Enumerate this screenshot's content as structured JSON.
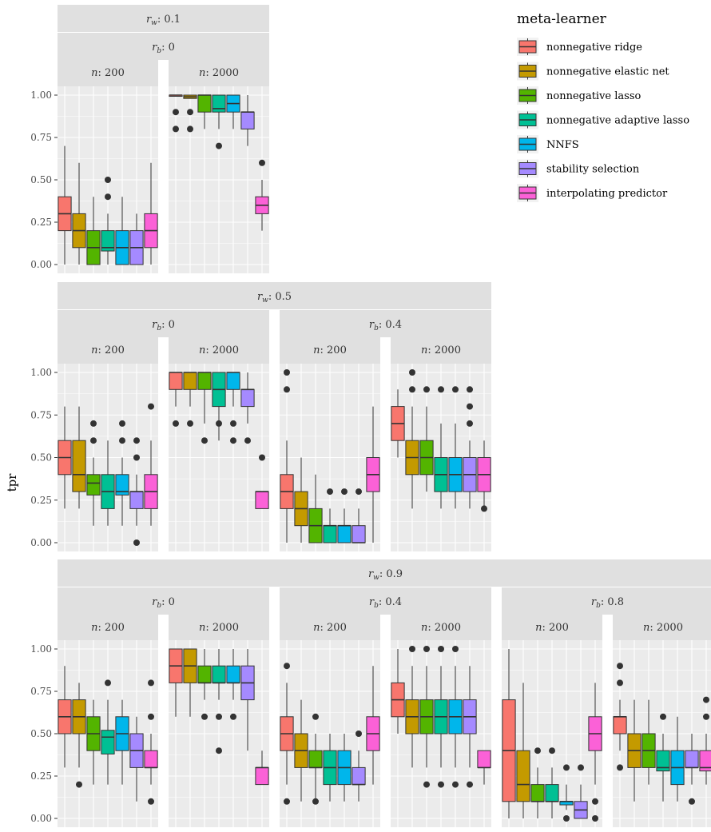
{
  "chart_data": {
    "type": "boxplot",
    "ylabel": "tpr",
    "xlabel": "",
    "ylim": [
      0,
      1
    ],
    "yticks": [
      "0.00",
      "0.25",
      "0.50",
      "0.75",
      "1.00"
    ],
    "grid": true,
    "legend": {
      "title": "meta-learner",
      "position": "top-right",
      "items": [
        {
          "label": "nonnegative ridge",
          "color": "#F8766D"
        },
        {
          "label": "nonnegative elastic net",
          "color": "#C49A00"
        },
        {
          "label": "nonnegative lasso",
          "color": "#53B400"
        },
        {
          "label": "nonnegative adaptive lasso",
          "color": "#00C094"
        },
        {
          "label": "NNFS",
          "color": "#00B6EB"
        },
        {
          "label": "stability selection",
          "color": "#A58AFF"
        },
        {
          "label": "interpolating predictor",
          "color": "#FB61D7"
        }
      ]
    },
    "panels": [
      {
        "rw": "0.1",
        "rb": "0",
        "n": "200",
        "boxes": [
          {
            "q1": 0.2,
            "median": 0.3,
            "q3": 0.4,
            "lo": 0.0,
            "hi": 0.7,
            "out": []
          },
          {
            "q1": 0.1,
            "median": 0.2,
            "q3": 0.3,
            "lo": 0.0,
            "hi": 0.6,
            "out": []
          },
          {
            "q1": 0.0,
            "median": 0.1,
            "q3": 0.2,
            "lo": 0.0,
            "hi": 0.4,
            "out": []
          },
          {
            "q1": 0.08,
            "median": 0.1,
            "q3": 0.2,
            "lo": 0.0,
            "hi": 0.3,
            "out": [
              0.4,
              0.5
            ]
          },
          {
            "q1": 0.0,
            "median": 0.1,
            "q3": 0.2,
            "lo": 0.0,
            "hi": 0.4,
            "out": []
          },
          {
            "q1": 0.0,
            "median": 0.1,
            "q3": 0.2,
            "lo": 0.0,
            "hi": 0.3,
            "out": []
          },
          {
            "q1": 0.1,
            "median": 0.2,
            "q3": 0.3,
            "lo": 0.0,
            "hi": 0.6,
            "out": []
          }
        ]
      },
      {
        "rw": "0.1",
        "rb": "0",
        "n": "2000",
        "boxes": [
          {
            "q1": 1.0,
            "median": 1.0,
            "q3": 1.0,
            "lo": 1.0,
            "hi": 1.0,
            "out": [
              0.8,
              0.9
            ]
          },
          {
            "q1": 0.98,
            "median": 0.99,
            "q3": 1.0,
            "lo": 0.98,
            "hi": 1.0,
            "out": [
              0.8,
              0.9
            ]
          },
          {
            "q1": 0.9,
            "median": 1.0,
            "q3": 1.0,
            "lo": 0.8,
            "hi": 1.0,
            "out": []
          },
          {
            "q1": 0.9,
            "median": 0.92,
            "q3": 1.0,
            "lo": 0.8,
            "hi": 1.0,
            "out": [
              0.7
            ]
          },
          {
            "q1": 0.9,
            "median": 0.95,
            "q3": 1.0,
            "lo": 0.8,
            "hi": 1.0,
            "out": []
          },
          {
            "q1": 0.8,
            "median": 0.9,
            "q3": 0.9,
            "lo": 0.7,
            "hi": 1.0,
            "out": []
          },
          {
            "q1": 0.3,
            "median": 0.35,
            "q3": 0.4,
            "lo": 0.2,
            "hi": 0.5,
            "out": [
              0.6
            ]
          }
        ]
      },
      {
        "rw": "0.5",
        "rb": "0",
        "n": "200",
        "boxes": [
          {
            "q1": 0.4,
            "median": 0.5,
            "q3": 0.6,
            "lo": 0.2,
            "hi": 0.8,
            "out": []
          },
          {
            "q1": 0.3,
            "median": 0.4,
            "q3": 0.6,
            "lo": 0.2,
            "hi": 0.8,
            "out": []
          },
          {
            "q1": 0.28,
            "median": 0.35,
            "q3": 0.4,
            "lo": 0.1,
            "hi": 0.5,
            "out": [
              0.6,
              0.7
            ]
          },
          {
            "q1": 0.2,
            "median": 0.3,
            "q3": 0.4,
            "lo": 0.1,
            "hi": 0.6,
            "out": []
          },
          {
            "q1": 0.28,
            "median": 0.3,
            "q3": 0.4,
            "lo": 0.1,
            "hi": 0.5,
            "out": [
              0.6,
              0.7
            ]
          },
          {
            "q1": 0.2,
            "median": 0.3,
            "q3": 0.3,
            "lo": 0.1,
            "hi": 0.4,
            "out": [
              0.0,
              0.5,
              0.6
            ]
          },
          {
            "q1": 0.2,
            "median": 0.3,
            "q3": 0.4,
            "lo": 0.1,
            "hi": 0.6,
            "out": [
              0.8
            ]
          }
        ]
      },
      {
        "rw": "0.5",
        "rb": "0",
        "n": "2000",
        "boxes": [
          {
            "q1": 0.9,
            "median": 1.0,
            "q3": 1.0,
            "lo": 0.8,
            "hi": 1.0,
            "out": [
              0.7
            ]
          },
          {
            "q1": 0.9,
            "median": 1.0,
            "q3": 1.0,
            "lo": 0.8,
            "hi": 1.0,
            "out": [
              0.7
            ]
          },
          {
            "q1": 0.9,
            "median": 1.0,
            "q3": 1.0,
            "lo": 0.7,
            "hi": 1.0,
            "out": [
              0.6
            ]
          },
          {
            "q1": 0.8,
            "median": 0.9,
            "q3": 1.0,
            "lo": 0.6,
            "hi": 1.0,
            "out": [
              0.7
            ]
          },
          {
            "q1": 0.9,
            "median": 1.0,
            "q3": 1.0,
            "lo": 0.8,
            "hi": 1.0,
            "out": [
              0.6,
              0.7
            ]
          },
          {
            "q1": 0.8,
            "median": 0.9,
            "q3": 0.9,
            "lo": 0.7,
            "hi": 1.0,
            "out": [
              0.6
            ]
          },
          {
            "q1": 0.2,
            "median": 0.3,
            "q3": 0.3,
            "lo": 0.2,
            "hi": 0.3,
            "out": [
              0.5
            ]
          }
        ]
      },
      {
        "rw": "0.5",
        "rb": "0.4",
        "n": "200",
        "boxes": [
          {
            "q1": 0.2,
            "median": 0.3,
            "q3": 0.4,
            "lo": 0.0,
            "hi": 0.6,
            "out": [
              0.9,
              1.0
            ]
          },
          {
            "q1": 0.1,
            "median": 0.2,
            "q3": 0.3,
            "lo": 0.0,
            "hi": 0.5,
            "out": []
          },
          {
            "q1": 0.0,
            "median": 0.1,
            "q3": 0.2,
            "lo": 0.0,
            "hi": 0.4,
            "out": []
          },
          {
            "q1": 0.0,
            "median": 0.1,
            "q3": 0.1,
            "lo": 0.0,
            "hi": 0.2,
            "out": [
              0.3
            ]
          },
          {
            "q1": 0.0,
            "median": 0.1,
            "q3": 0.1,
            "lo": 0.0,
            "hi": 0.2,
            "out": [
              0.3
            ]
          },
          {
            "q1": 0.0,
            "median": 0.0,
            "q3": 0.1,
            "lo": 0.0,
            "hi": 0.2,
            "out": [
              0.3
            ]
          },
          {
            "q1": 0.3,
            "median": 0.4,
            "q3": 0.5,
            "lo": 0.0,
            "hi": 0.8,
            "out": []
          }
        ]
      },
      {
        "rw": "0.5",
        "rb": "0.4",
        "n": "2000",
        "boxes": [
          {
            "q1": 0.6,
            "median": 0.7,
            "q3": 0.8,
            "lo": 0.5,
            "hi": 0.9,
            "out": []
          },
          {
            "q1": 0.4,
            "median": 0.5,
            "q3": 0.6,
            "lo": 0.2,
            "hi": 0.8,
            "out": [
              0.9,
              1.0
            ]
          },
          {
            "q1": 0.4,
            "median": 0.5,
            "q3": 0.6,
            "lo": 0.3,
            "hi": 0.8,
            "out": [
              0.9
            ]
          },
          {
            "q1": 0.3,
            "median": 0.4,
            "q3": 0.5,
            "lo": 0.2,
            "hi": 0.7,
            "out": [
              0.9
            ]
          },
          {
            "q1": 0.3,
            "median": 0.4,
            "q3": 0.5,
            "lo": 0.2,
            "hi": 0.7,
            "out": [
              0.9
            ]
          },
          {
            "q1": 0.3,
            "median": 0.4,
            "q3": 0.5,
            "lo": 0.2,
            "hi": 0.6,
            "out": [
              0.7,
              0.8,
              0.9
            ]
          },
          {
            "q1": 0.3,
            "median": 0.4,
            "q3": 0.5,
            "lo": 0.2,
            "hi": 0.6,
            "out": [
              0.2
            ]
          }
        ]
      },
      {
        "rw": "0.9",
        "rb": "0",
        "n": "200",
        "boxes": [
          {
            "q1": 0.5,
            "median": 0.6,
            "q3": 0.7,
            "lo": 0.3,
            "hi": 0.9,
            "out": []
          },
          {
            "q1": 0.5,
            "median": 0.6,
            "q3": 0.7,
            "lo": 0.3,
            "hi": 0.8,
            "out": [
              0.2
            ]
          },
          {
            "q1": 0.4,
            "median": 0.5,
            "q3": 0.6,
            "lo": 0.2,
            "hi": 0.7,
            "out": []
          },
          {
            "q1": 0.38,
            "median": 0.48,
            "q3": 0.52,
            "lo": 0.2,
            "hi": 0.7,
            "out": [
              0.8
            ]
          },
          {
            "q1": 0.4,
            "median": 0.5,
            "q3": 0.6,
            "lo": 0.2,
            "hi": 0.7,
            "out": []
          },
          {
            "q1": 0.3,
            "median": 0.4,
            "q3": 0.5,
            "lo": 0.1,
            "hi": 0.6,
            "out": []
          },
          {
            "q1": 0.3,
            "median": 0.3,
            "q3": 0.4,
            "lo": 0.2,
            "hi": 0.5,
            "out": [
              0.1,
              0.6,
              0.8
            ]
          }
        ]
      },
      {
        "rw": "0.9",
        "rb": "0",
        "n": "2000",
        "boxes": [
          {
            "q1": 0.8,
            "median": 0.9,
            "q3": 1.0,
            "lo": 0.6,
            "hi": 1.0,
            "out": []
          },
          {
            "q1": 0.8,
            "median": 0.9,
            "q3": 1.0,
            "lo": 0.6,
            "hi": 1.0,
            "out": []
          },
          {
            "q1": 0.8,
            "median": 0.8,
            "q3": 0.9,
            "lo": 0.7,
            "hi": 1.0,
            "out": [
              0.6
            ]
          },
          {
            "q1": 0.8,
            "median": 0.8,
            "q3": 0.9,
            "lo": 0.7,
            "hi": 1.0,
            "out": [
              0.4,
              0.6
            ]
          },
          {
            "q1": 0.8,
            "median": 0.8,
            "q3": 0.9,
            "lo": 0.7,
            "hi": 1.0,
            "out": [
              0.6
            ]
          },
          {
            "q1": 0.7,
            "median": 0.8,
            "q3": 0.9,
            "lo": 0.4,
            "hi": 1.0,
            "out": []
          },
          {
            "q1": 0.2,
            "median": 0.3,
            "q3": 0.3,
            "lo": 0.2,
            "hi": 0.4,
            "out": []
          }
        ]
      },
      {
        "rw": "0.9",
        "rb": "0.4",
        "n": "200",
        "boxes": [
          {
            "q1": 0.4,
            "median": 0.5,
            "q3": 0.6,
            "lo": 0.2,
            "hi": 0.8,
            "out": [
              0.1,
              0.9
            ]
          },
          {
            "q1": 0.3,
            "median": 0.4,
            "q3": 0.5,
            "lo": 0.1,
            "hi": 0.7,
            "out": []
          },
          {
            "q1": 0.3,
            "median": 0.3,
            "q3": 0.4,
            "lo": 0.1,
            "hi": 0.5,
            "out": [
              0.1,
              0.6
            ]
          },
          {
            "q1": 0.2,
            "median": 0.3,
            "q3": 0.4,
            "lo": 0.1,
            "hi": 0.5,
            "out": []
          },
          {
            "q1": 0.2,
            "median": 0.3,
            "q3": 0.4,
            "lo": 0.1,
            "hi": 0.5,
            "out": []
          },
          {
            "q1": 0.2,
            "median": 0.2,
            "q3": 0.3,
            "lo": 0.1,
            "hi": 0.4,
            "out": [
              0.5
            ]
          },
          {
            "q1": 0.4,
            "median": 0.5,
            "q3": 0.6,
            "lo": 0.2,
            "hi": 0.9,
            "out": []
          }
        ]
      },
      {
        "rw": "0.9",
        "rb": "0.4",
        "n": "2000",
        "boxes": [
          {
            "q1": 0.6,
            "median": 0.7,
            "q3": 0.8,
            "lo": 0.5,
            "hi": 1.0,
            "out": []
          },
          {
            "q1": 0.5,
            "median": 0.6,
            "q3": 0.7,
            "lo": 0.3,
            "hi": 0.9,
            "out": [
              1.0
            ]
          },
          {
            "q1": 0.5,
            "median": 0.6,
            "q3": 0.7,
            "lo": 0.3,
            "hi": 0.9,
            "out": [
              0.2,
              1.0
            ]
          },
          {
            "q1": 0.5,
            "median": 0.6,
            "q3": 0.7,
            "lo": 0.3,
            "hi": 0.9,
            "out": [
              0.2,
              1.0
            ]
          },
          {
            "q1": 0.5,
            "median": 0.6,
            "q3": 0.7,
            "lo": 0.3,
            "hi": 0.9,
            "out": [
              0.2,
              1.0
            ]
          },
          {
            "q1": 0.5,
            "median": 0.6,
            "q3": 0.7,
            "lo": 0.3,
            "hi": 0.9,
            "out": [
              0.2
            ]
          },
          {
            "q1": 0.3,
            "median": 0.3,
            "q3": 0.4,
            "lo": 0.2,
            "hi": 0.4,
            "out": []
          }
        ]
      },
      {
        "rw": "0.9",
        "rb": "0.8",
        "n": "200",
        "boxes": [
          {
            "q1": 0.1,
            "median": 0.4,
            "q3": 0.7,
            "lo": 0.0,
            "hi": 1.0,
            "out": []
          },
          {
            "q1": 0.1,
            "median": 0.2,
            "q3": 0.4,
            "lo": 0.0,
            "hi": 0.8,
            "out": []
          },
          {
            "q1": 0.1,
            "median": 0.1,
            "q3": 0.2,
            "lo": 0.0,
            "hi": 0.3,
            "out": [
              0.4
            ]
          },
          {
            "q1": 0.1,
            "median": 0.1,
            "q3": 0.2,
            "lo": 0.0,
            "hi": 0.3,
            "out": [
              0.4
            ]
          },
          {
            "q1": 0.08,
            "median": 0.1,
            "q3": 0.1,
            "lo": 0.05,
            "hi": 0.2,
            "out": [
              0.0,
              0.3
            ]
          },
          {
            "q1": 0.0,
            "median": 0.05,
            "q3": 0.1,
            "lo": 0.0,
            "hi": 0.2,
            "out": [
              0.3
            ]
          },
          {
            "q1": 0.4,
            "median": 0.5,
            "q3": 0.6,
            "lo": 0.2,
            "hi": 0.8,
            "out": [
              0.0,
              0.1
            ]
          }
        ]
      },
      {
        "rw": "0.9",
        "rb": "0.8",
        "n": "2000",
        "boxes": [
          {
            "q1": 0.5,
            "median": 0.6,
            "q3": 0.6,
            "lo": 0.4,
            "hi": 0.7,
            "out": [
              0.3,
              0.8,
              0.9
            ]
          },
          {
            "q1": 0.3,
            "median": 0.4,
            "q3": 0.5,
            "lo": 0.1,
            "hi": 0.7,
            "out": []
          },
          {
            "q1": 0.3,
            "median": 0.4,
            "q3": 0.5,
            "lo": 0.2,
            "hi": 0.7,
            "out": []
          },
          {
            "q1": 0.28,
            "median": 0.3,
            "q3": 0.4,
            "lo": 0.1,
            "hi": 0.5,
            "out": [
              0.6
            ]
          },
          {
            "q1": 0.2,
            "median": 0.3,
            "q3": 0.4,
            "lo": 0.1,
            "hi": 0.6,
            "out": []
          },
          {
            "q1": 0.3,
            "median": 0.3,
            "q3": 0.4,
            "lo": 0.2,
            "hi": 0.5,
            "out": [
              0.1
            ]
          },
          {
            "q1": 0.28,
            "median": 0.3,
            "q3": 0.4,
            "lo": 0.2,
            "hi": 0.5,
            "out": [
              0.6,
              0.7
            ]
          }
        ]
      }
    ]
  }
}
